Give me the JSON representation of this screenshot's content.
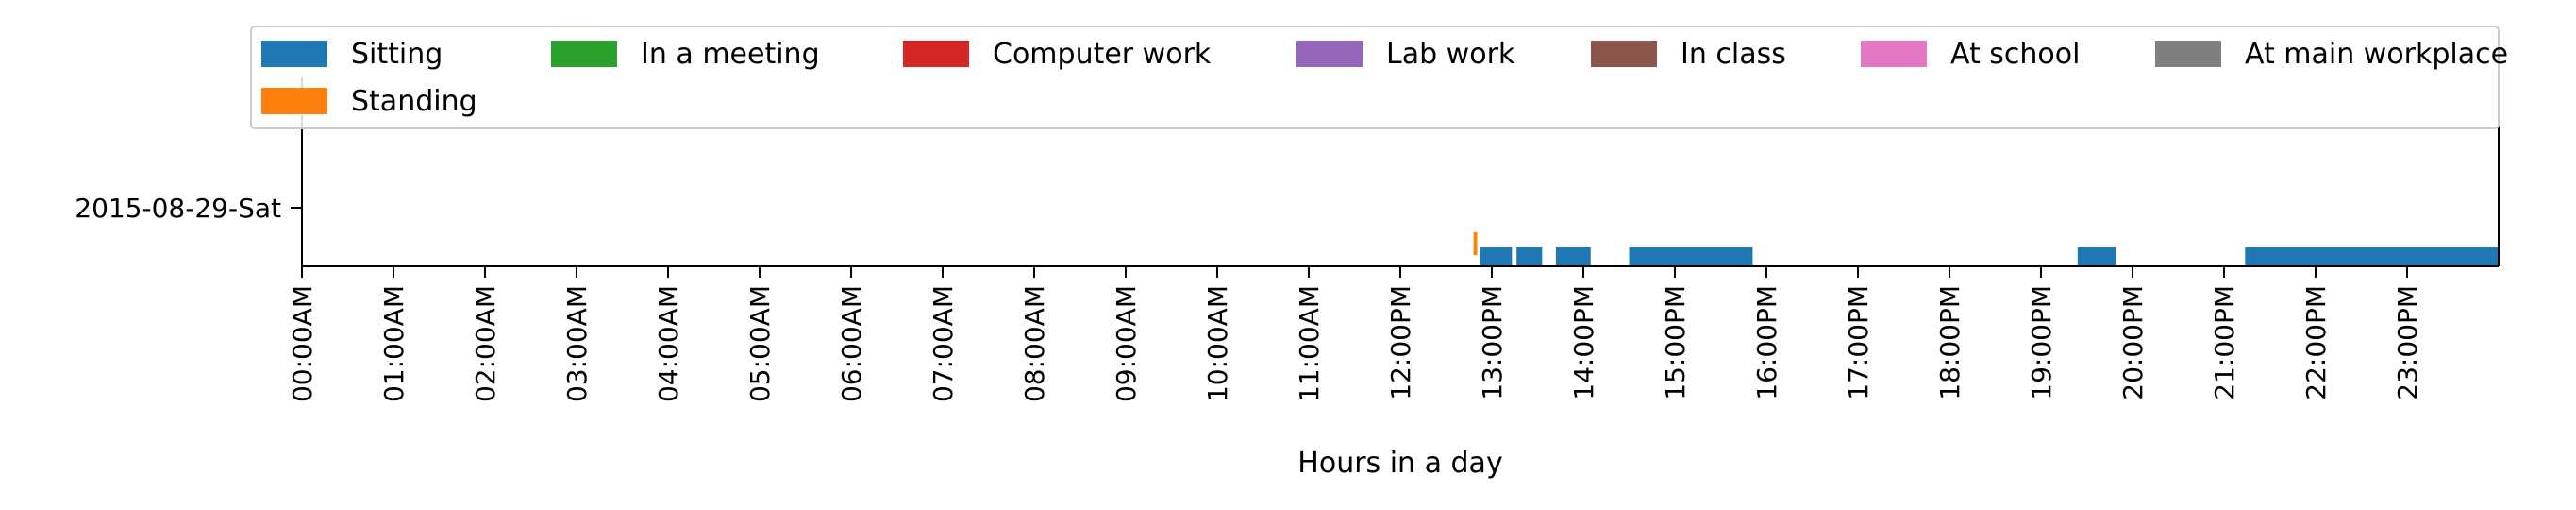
{
  "chart_data": {
    "type": "timeline",
    "xlabel": "Hours in a day",
    "xlim": [
      0,
      24
    ],
    "x_ticks": [
      "00:00AM",
      "01:00AM",
      "02:00AM",
      "03:00AM",
      "04:00AM",
      "05:00AM",
      "06:00AM",
      "07:00AM",
      "08:00AM",
      "09:00AM",
      "10:00AM",
      "11:00AM",
      "12:00PM",
      "13:00PM",
      "14:00PM",
      "15:00PM",
      "16:00PM",
      "17:00PM",
      "18:00PM",
      "19:00PM",
      "20:00PM",
      "21:00PM",
      "22:00PM",
      "23:00PM"
    ],
    "y_categories": [
      "2015-08-29-Sat"
    ],
    "legend_position": "top",
    "legend": [
      {
        "label": "Sitting",
        "color": "#1f77b4"
      },
      {
        "label": "In a meeting",
        "color": "#2ca02c"
      },
      {
        "label": "Computer work",
        "color": "#d62728"
      },
      {
        "label": "Lab work",
        "color": "#9467bd"
      },
      {
        "label": "In class",
        "color": "#8c564b"
      },
      {
        "label": "At school",
        "color": "#e377c2"
      },
      {
        "label": "At main workplace",
        "color": "#7f7f7f"
      },
      {
        "label": "Standing",
        "color": "#ff7f0e"
      }
    ],
    "series": [
      {
        "name": "Sitting",
        "color": "#1f77b4",
        "intervals": [
          [
            12.87,
            13.22
          ],
          [
            13.27,
            13.55
          ],
          [
            13.7,
            14.08
          ],
          [
            14.5,
            15.85
          ],
          [
            19.4,
            19.82
          ],
          [
            21.23,
            24.0
          ]
        ]
      },
      {
        "name": "Standing",
        "color": "#ff7f0e",
        "intervals": [
          [
            12.8,
            12.84
          ]
        ]
      }
    ]
  }
}
